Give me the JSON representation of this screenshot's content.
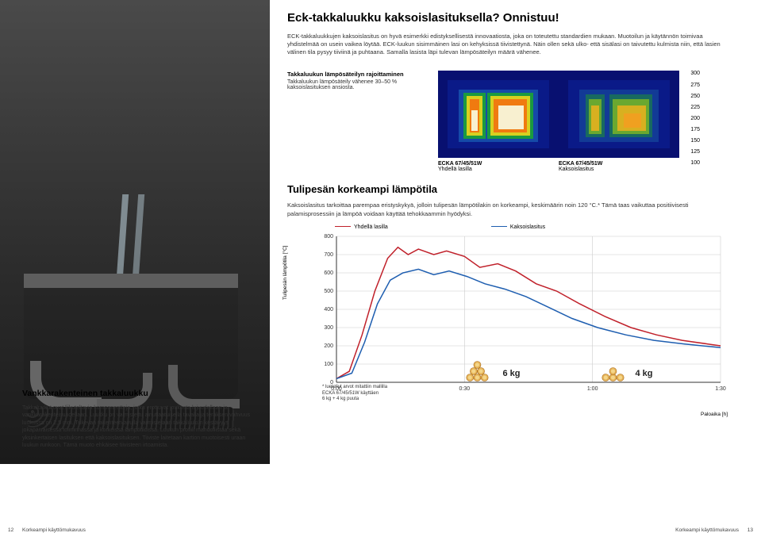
{
  "header": {
    "title": "Eck-takkaluukku kaksoislasituksella? Onnistuu!",
    "intro": "ECK-takkaluukkujen kaksoislasitus on hyvä esimerkki edistyksellisestä innovaatiosta, joka on toteutettu standardien mukaan. Muotoilun ja käytännön toimivaa yhdistelmää on usein vaikea löytää. ECK-luukun sisimmäinen lasi on kehyksissä tiivistettynä. Näin ollen sekä ulko- että sisälasi on taivutettu kulmista niin, että lasien välinen tila pysyy tiiviinä ja puhtaana. Samalla lasista läpi tulevan lämpösäteilyn määrä vähenee."
  },
  "heat": {
    "label_bold": "Takkaluukun lämpösäteilyn rajoittaminen",
    "label_sub": "Takkaluukun lämpösäteily vähenee 30–50 % kaksoislasituksen ansiosta.",
    "scale": [
      "300",
      "275",
      "250",
      "225",
      "200",
      "175",
      "150",
      "125",
      "100"
    ],
    "img1_title": "ECKA 67/45/51W",
    "img1_sub": "Yhdellä lasilla",
    "img2_title": "ECKA 67/45/51W",
    "img2_sub": "Kaksoislasitus",
    "colors": {
      "cold": "#081070",
      "mid1": "#1a9a40",
      "mid2": "#d8d020",
      "hot1": "#f07a10",
      "hot2": "#f8f0d0"
    }
  },
  "section2": {
    "title": "Tulipesän korkeampi lämpötila",
    "body": "Kaksoislasitus tarkoittaa parempaa eristyskykyä, jolloin tulipesän lämpötilakin on korkeampi, keskimäärin noin 120 °C.* Tämä taas vaikuttaa positiivisesti palamisprosessiin ja lämpöä voidaan käyttää tehokkaammin hyödyksi."
  },
  "chart": {
    "legend1": "Yhdellä lasilla",
    "legend2": "Kaksoislasitus",
    "ylabel": "Tulipesän lämpötila [°C]",
    "xlabel": "Paloaika [h]",
    "color1": "#c0202a",
    "color2": "#1e5eb0",
    "grid_color": "#cccccc",
    "axis_color": "#333333",
    "ymin": 0,
    "ymax": 800,
    "ystep": 100,
    "xticks": [
      "0:00",
      "0:30",
      "1:00",
      "1:30"
    ],
    "yticks": [
      "800",
      "700",
      "600",
      "500",
      "400",
      "300",
      "200",
      "100",
      "0"
    ],
    "series1": [
      [
        0,
        20
      ],
      [
        0.05,
        60
      ],
      [
        0.1,
        260
      ],
      [
        0.15,
        500
      ],
      [
        0.2,
        680
      ],
      [
        0.24,
        740
      ],
      [
        0.28,
        700
      ],
      [
        0.32,
        730
      ],
      [
        0.38,
        700
      ],
      [
        0.43,
        720
      ],
      [
        0.5,
        690
      ],
      [
        0.56,
        630
      ],
      [
        0.63,
        650
      ],
      [
        0.7,
        610
      ],
      [
        0.78,
        540
      ],
      [
        0.86,
        500
      ],
      [
        0.95,
        430
      ],
      [
        1.05,
        360
      ],
      [
        1.15,
        300
      ],
      [
        1.25,
        260
      ],
      [
        1.35,
        230
      ],
      [
        1.45,
        210
      ],
      [
        1.5,
        200
      ]
    ],
    "series2": [
      [
        0,
        20
      ],
      [
        0.06,
        50
      ],
      [
        0.11,
        220
      ],
      [
        0.16,
        430
      ],
      [
        0.21,
        560
      ],
      [
        0.26,
        600
      ],
      [
        0.32,
        620
      ],
      [
        0.38,
        590
      ],
      [
        0.44,
        610
      ],
      [
        0.51,
        580
      ],
      [
        0.58,
        540
      ],
      [
        0.66,
        510
      ],
      [
        0.74,
        470
      ],
      [
        0.83,
        410
      ],
      [
        0.92,
        350
      ],
      [
        1.02,
        300
      ],
      [
        1.13,
        260
      ],
      [
        1.24,
        230
      ],
      [
        1.36,
        210
      ],
      [
        1.5,
        190
      ]
    ],
    "footnote1": "* luetellut arvot mitattiin mallilla",
    "footnote2": "ECKA 67/45/51W käyttäen",
    "footnote3": "6 kg + 4 kg puuta",
    "wood1_label": "6 kg",
    "wood2_label": "4 kg"
  },
  "bottomLeft": {
    "title": "Vankkarakenteinen takkaluukku",
    "body": "Takkaluukut ovat liikuteltavia komponentteja, jotka erottuvat joukosta lujuudellaan ja vankkarakenteisuudellaan. Luukku on valmistettu ainutlaatuisella tavalla ja teräksen vahvuus luukussa on 2,5 mm. Tukevan rakenteen avulla varmistetaan takkaluukun kestävyys jokapäiväisessä toiminnassa ja korkeissa lämpötiloissa. Luukun profiili mahdollistaa sekä yksinkertaisen lasituksen että kaksoislasituksen. Tiiviste laitetaan kartion muotoisesti uraan luukun runkoon. Tämä muoto ehkäisee tiivisteen irtoamista."
  },
  "footer": {
    "pl": "12",
    "tl": "Korkeampi käyttömukavuus",
    "tr": "Korkeampi käyttömukavuus",
    "pr": "13"
  }
}
